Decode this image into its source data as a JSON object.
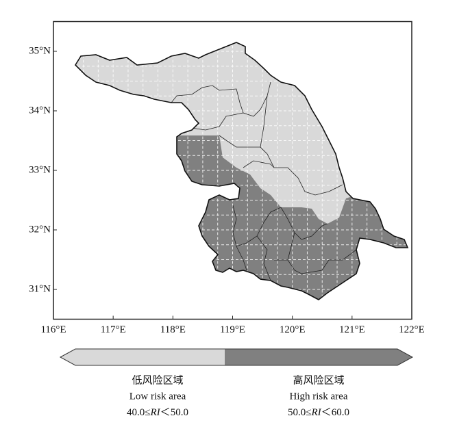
{
  "map": {
    "xlim": [
      116,
      122
    ],
    "ylim": [
      30.5,
      35.5
    ],
    "xticks": [
      {
        "value": 116,
        "label": "116°E"
      },
      {
        "value": 117,
        "label": "117°E"
      },
      {
        "value": 118,
        "label": "118°E"
      },
      {
        "value": 119,
        "label": "119°E"
      },
      {
        "value": 120,
        "label": "120°E"
      },
      {
        "value": 121,
        "label": "121°E"
      },
      {
        "value": 122,
        "label": "122°E"
      }
    ],
    "yticks": [
      {
        "value": 31,
        "label": "31°N"
      },
      {
        "value": 32,
        "label": "32°N"
      },
      {
        "value": 33,
        "label": "33°N"
      },
      {
        "value": 34,
        "label": "34°N"
      },
      {
        "value": 35,
        "label": "35°N"
      }
    ]
  },
  "legend": [
    {
      "name_zh": "低风险区域",
      "name_en": "Low risk area",
      "range": [
        "40.0≤",
        "RI",
        "＜50.0"
      ],
      "color": "#d9d9d9"
    },
    {
      "name_zh": "高风险区域",
      "name_en": "High risk area",
      "range": [
        "50.0≤",
        "RI",
        "＜60.0"
      ],
      "color": "#808080"
    }
  ]
}
